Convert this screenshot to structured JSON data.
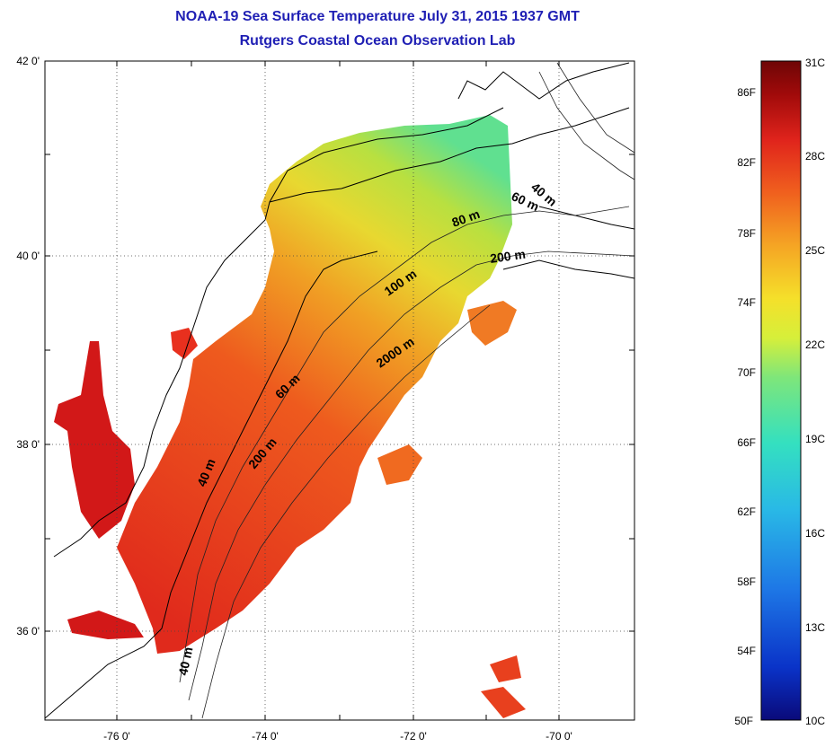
{
  "title_line1": "NOAA-19 Sea Surface Temperature July 31, 2015 1937 GMT",
  "title_line2": "Rutgers Coastal Ocean Observation Lab",
  "axes": {
    "lat_labels": [
      "42 0'",
      "40 0'",
      "38 0'",
      "36 0'"
    ],
    "lon_labels": [
      "-76 0'",
      "-74 0'",
      "-72 0'",
      "-70 0'"
    ]
  },
  "contours": [
    "40 m",
    "60 m",
    "80 m",
    "200 m",
    "100 m",
    "2000 m",
    "60 m",
    "200 m",
    "40 m",
    "40 m"
  ],
  "colorbar": {
    "colors": [
      "#0a0a7a",
      "#0a33c8",
      "#1e78e6",
      "#29b9e6",
      "#34e0c0",
      "#7ee67a",
      "#d6ef3a",
      "#f5e02a",
      "#f5a524",
      "#f0601e",
      "#e0241c",
      "#a00a0a",
      "#6e0606"
    ],
    "fahrenheit": [
      "86F",
      "82F",
      "78F",
      "74F",
      "70F",
      "66F",
      "62F",
      "58F",
      "54F",
      "50F"
    ],
    "celsius": [
      "31C",
      "28C",
      "25C",
      "22C",
      "19C",
      "16C",
      "13C",
      "10C"
    ]
  }
}
